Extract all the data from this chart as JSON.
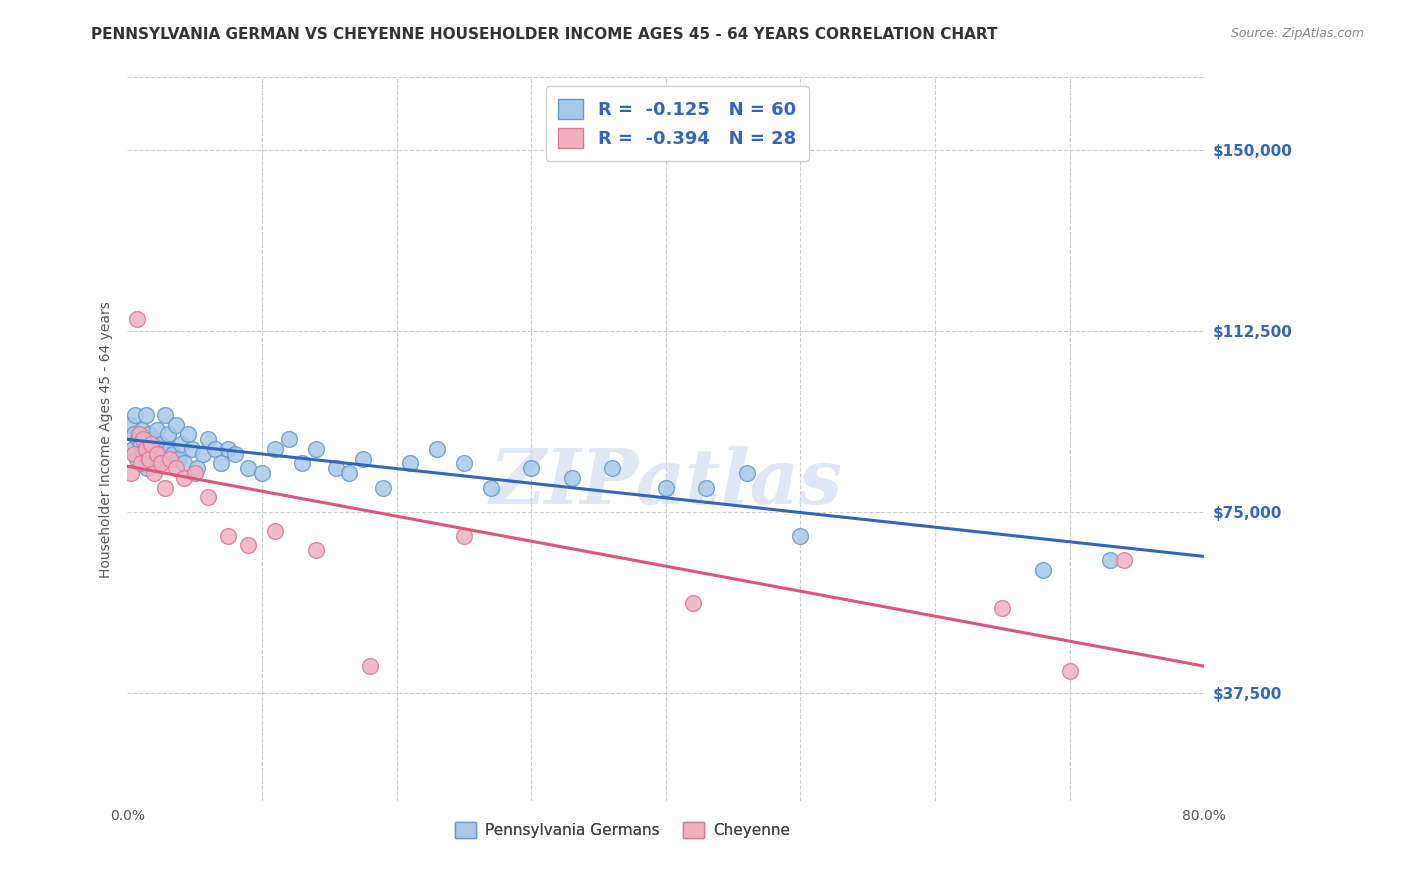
{
  "title": "PENNSYLVANIA GERMAN VS CHEYENNE HOUSEHOLDER INCOME AGES 45 - 64 YEARS CORRELATION CHART",
  "source": "Source: ZipAtlas.com",
  "ylabel": "Householder Income Ages 45 - 64 years",
  "ylabel_values": [
    37500,
    75000,
    112500,
    150000
  ],
  "ylabel_labels": [
    "$37,500",
    "$75,000",
    "$112,500",
    "$150,000"
  ],
  "xmin": 0.0,
  "xmax": 0.8,
  "ymin": 15000,
  "ymax": 165000,
  "legend_label1": "Pennsylvania Germans",
  "legend_label2": "Cheyenne",
  "R1": -0.125,
  "N1": 60,
  "R2": -0.394,
  "N2": 28,
  "color_blue_fill": "#a8c8e8",
  "color_blue_edge": "#6699cc",
  "color_pink_fill": "#f0b0c0",
  "color_pink_edge": "#dd7799",
  "trendline_blue": "#3366bb",
  "trendline_pink": "#dd5577",
  "blue_scatter_x": [
    0.002,
    0.004,
    0.005,
    0.006,
    0.007,
    0.008,
    0.01,
    0.011,
    0.012,
    0.013,
    0.014,
    0.015,
    0.016,
    0.018,
    0.019,
    0.02,
    0.022,
    0.023,
    0.025,
    0.027,
    0.028,
    0.03,
    0.032,
    0.034,
    0.036,
    0.038,
    0.04,
    0.042,
    0.045,
    0.048,
    0.052,
    0.056,
    0.06,
    0.065,
    0.07,
    0.075,
    0.08,
    0.09,
    0.1,
    0.11,
    0.12,
    0.13,
    0.14,
    0.155,
    0.165,
    0.175,
    0.19,
    0.21,
    0.23,
    0.25,
    0.27,
    0.3,
    0.33,
    0.36,
    0.4,
    0.43,
    0.46,
    0.5,
    0.68,
    0.73
  ],
  "blue_scatter_y": [
    93000,
    88000,
    91000,
    95000,
    86000,
    90000,
    89000,
    92000,
    87000,
    88000,
    95000,
    84000,
    91000,
    86000,
    90000,
    88000,
    92000,
    85000,
    89000,
    87000,
    95000,
    91000,
    88000,
    87000,
    93000,
    86000,
    89000,
    85000,
    91000,
    88000,
    84000,
    87000,
    90000,
    88000,
    85000,
    88000,
    87000,
    84000,
    83000,
    88000,
    90000,
    85000,
    88000,
    84000,
    83000,
    86000,
    80000,
    85000,
    88000,
    85000,
    80000,
    84000,
    82000,
    84000,
    80000,
    80000,
    83000,
    70000,
    63000,
    65000
  ],
  "pink_scatter_x": [
    0.003,
    0.005,
    0.007,
    0.009,
    0.01,
    0.012,
    0.014,
    0.016,
    0.018,
    0.02,
    0.022,
    0.025,
    0.028,
    0.032,
    0.036,
    0.042,
    0.05,
    0.06,
    0.075,
    0.09,
    0.11,
    0.14,
    0.18,
    0.25,
    0.42,
    0.65,
    0.7,
    0.74
  ],
  "pink_scatter_y": [
    83000,
    87000,
    115000,
    91000,
    85000,
    90000,
    88000,
    86000,
    89000,
    83000,
    87000,
    85000,
    80000,
    86000,
    84000,
    82000,
    83000,
    78000,
    70000,
    68000,
    71000,
    67000,
    43000,
    70000,
    56000,
    55000,
    42000,
    65000
  ],
  "watermark": "ZIPatlas",
  "grid_color": "#cccccc",
  "background_color": "#ffffff",
  "title_fontsize": 11,
  "axis_label_fontsize": 10,
  "tick_fontsize": 10,
  "scatter_size": 130
}
